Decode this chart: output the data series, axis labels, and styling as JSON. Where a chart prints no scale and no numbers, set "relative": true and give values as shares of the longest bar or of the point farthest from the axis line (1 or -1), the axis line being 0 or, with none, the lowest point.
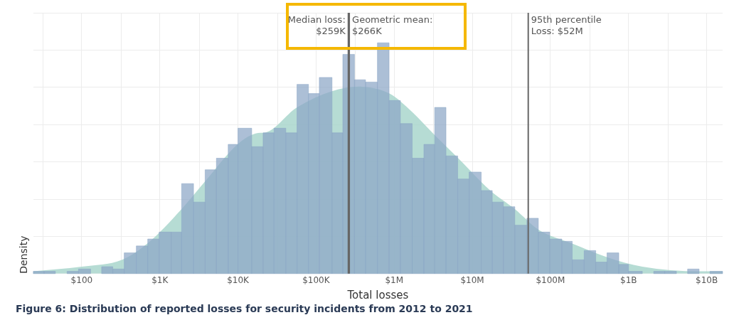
{
  "chart_data": {
    "type": "histogram",
    "xlabel": "Total losses",
    "ylabel": "Density",
    "annotations": [
      "Figure 6: Distribution of reported losses for security incidents from 2012 to 2021"
    ],
    "relative": true,
    "log": "x",
    "grid": true,
    "xlim": [
      24,
      16000000000
    ],
    "xticks": [
      {
        "value": 32,
        "label": null
      },
      {
        "value": 100,
        "label": "$100"
      },
      {
        "value": 320,
        "label": null
      },
      {
        "value": 1000,
        "label": "$1K"
      },
      {
        "value": 3200,
        "label": null
      },
      {
        "value": 10000,
        "label": "$10K"
      },
      {
        "value": 32000,
        "label": null
      },
      {
        "value": 100000,
        "label": "$100K"
      },
      {
        "value": 320000,
        "label": null
      },
      {
        "value": 1000000,
        "label": "$1M"
      },
      {
        "value": 3200000,
        "label": null
      },
      {
        "value": 10000000,
        "label": "$10M"
      },
      {
        "value": 32000000,
        "label": null
      },
      {
        "value": 100000000,
        "label": "$100M"
      },
      {
        "value": 320000000,
        "label": null
      },
      {
        "value": 1000000000,
        "label": "$1B"
      },
      {
        "value": 3200000000,
        "label": null
      },
      {
        "value": 10000000000,
        "label": "$10B"
      }
    ],
    "series": [
      {
        "type": "area",
        "color": "#a9d6cd",
        "x": [
          24,
          100,
          330,
          690,
          1900,
          3800,
          10700,
          19500,
          21000,
          57000,
          160000,
          350000,
          870000,
          1700000,
          3300000,
          6600000,
          17000000,
          35000000,
          71000000,
          190000000,
          540000000,
          1500000000,
          8100000000,
          16000000000
        ],
        "values": [
          0.01,
          0.03,
          0.06,
          0.13,
          0.28,
          0.4,
          0.57,
          0.61,
          0.61,
          0.72,
          0.79,
          0.81,
          0.78,
          0.7,
          0.6,
          0.5,
          0.36,
          0.28,
          0.19,
          0.13,
          0.07,
          0.03,
          0.01,
          0.01
        ]
      },
      {
        "color": "#8ca6c6",
        "bins": [
          24,
          33,
          46,
          65,
          91,
          130,
          180,
          250,
          350,
          500,
          700,
          980,
          1400,
          1900,
          2700,
          3800,
          5300,
          7500,
          10000,
          15000,
          21000,
          29000,
          41000,
          57000,
          80000,
          110000,
          160000,
          220000,
          310000,
          430000,
          610000,
          860000,
          1200000,
          1700000,
          2400000,
          3300000,
          4600000,
          6500000,
          9100000,
          13000000,
          18000000,
          25000000,
          35000000,
          50000000,
          70000000,
          98000000,
          140000000,
          190000000,
          270000000,
          380000000,
          530000000,
          750000000,
          1000000000,
          1500000000,
          2100000000,
          2900000000,
          4100000000,
          5700000000,
          8000000000,
          11000000000,
          16000000000
        ],
        "values": [
          0.01,
          0.01,
          0,
          0.01,
          0.02,
          0,
          0.03,
          0.02,
          0.09,
          0.12,
          0.15,
          0.18,
          0.18,
          0.39,
          0.31,
          0.45,
          0.5,
          0.56,
          0.63,
          0.55,
          0.61,
          0.63,
          0.61,
          0.82,
          0.78,
          0.85,
          0.61,
          0.95,
          0.84,
          0.83,
          1.0,
          0.75,
          0.65,
          0.5,
          0.56,
          0.72,
          0.51,
          0.41,
          0.44,
          0.36,
          0.31,
          0.29,
          0.21,
          0.24,
          0.18,
          0.15,
          0.14,
          0.06,
          0.1,
          0.05,
          0.09,
          0.04,
          0.01,
          0,
          0.01,
          0.01,
          0,
          0.02,
          0,
          0.01
        ]
      }
    ],
    "ref_lines": [
      {
        "axis": "x",
        "value": 259000,
        "label": "Median loss:\n$259K",
        "color": "#666666"
      },
      {
        "axis": "x",
        "value": 266000,
        "label": "Geometric mean:\n$266K",
        "color": "#666666"
      },
      {
        "axis": "x",
        "value": 52000000,
        "label": "95th percentile\nLoss: $52M",
        "color": "#666666"
      }
    ]
  }
}
